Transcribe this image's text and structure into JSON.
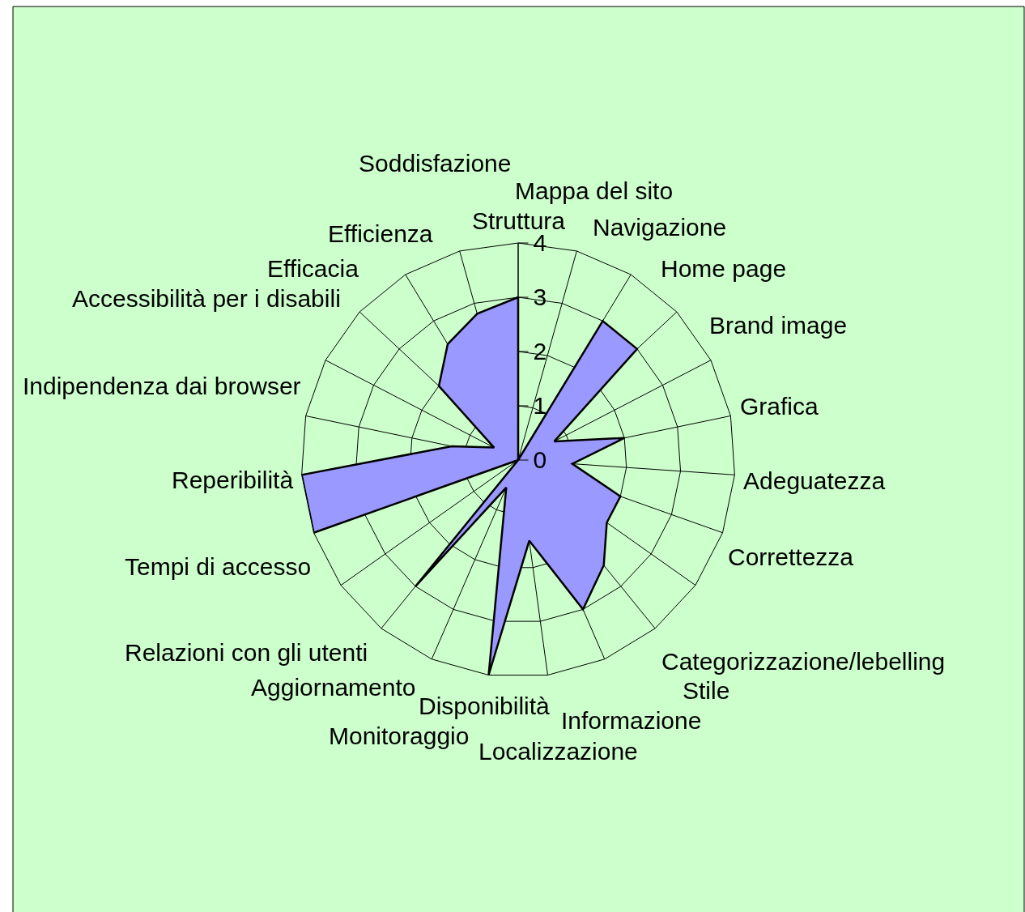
{
  "chart_data": {
    "type": "radar",
    "categories": [
      "Struttura",
      "Mappa del sito",
      "Navigazione",
      "Home page",
      "Brand image",
      "Grafica",
      "Adeguatezza",
      "Correttezza",
      "Categorizzazione/lebelling",
      "Stile",
      "Informazione",
      "Localizzazione",
      "Disponibilità",
      "Monitoraggio",
      "Aggiornamento",
      "Relazioni con gli utenti",
      "Tempi di accesso",
      "Reperibilità",
      "Indipendenza dai browser",
      "Accessibilità per i disabili",
      "Efficacia",
      "Efficienza",
      "Soddisfazione"
    ],
    "series": [
      {
        "color": "#9999ff",
        "values": [
          3,
          0,
          3,
          3,
          0.75,
          2,
          1,
          2,
          2,
          2.5,
          3,
          1.5,
          4,
          0.55,
          3,
          0,
          4,
          4,
          1.25,
          0.5,
          2,
          2.5,
          2.8
        ]
      }
    ],
    "ylim": [
      0,
      4
    ],
    "yticks": [
      0,
      1,
      2,
      3,
      4
    ],
    "grid": true,
    "marker": "none",
    "line_style": "solid"
  }
}
